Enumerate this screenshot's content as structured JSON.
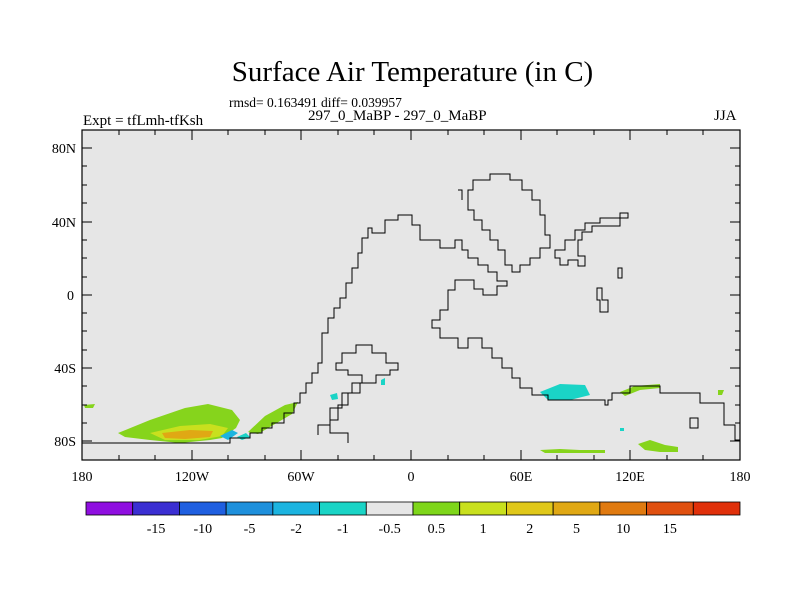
{
  "title": "Surface Air Temperature (in C)",
  "stats_line": "rmsd= 0.163491 diff= 0.039957",
  "left_label": "Expt = tfLmh-tfKsh",
  "center_label": "297_0_MaBP - 297_0_MaBP",
  "right_label": "JJA",
  "map": {
    "lat_range": [
      -90,
      90
    ],
    "lon_range": [
      -180,
      180
    ],
    "lat_labels": [
      "80N",
      "40N",
      "0",
      "40S",
      "80S"
    ],
    "lon_labels": [
      "180",
      "120W",
      "60W",
      "0",
      "60E",
      "120E",
      "180"
    ],
    "background_color": "#e6e6e6"
  },
  "colorbar": {
    "colors": [
      "#8f0fe0",
      "#3b2fd2",
      "#1f5fe0",
      "#1e90dc",
      "#1cb4e0",
      "#1ad4c6",
      "#e6e6e6",
      "#7ed61a",
      "#c9e01e",
      "#e0c81a",
      "#e0a814",
      "#e07a10",
      "#e05010",
      "#e0300a"
    ],
    "labels": [
      "-15",
      "-10",
      "-5",
      "-2",
      "-1",
      "-0.5",
      "0.5",
      "1",
      "2",
      "5",
      "10",
      "15"
    ]
  }
}
